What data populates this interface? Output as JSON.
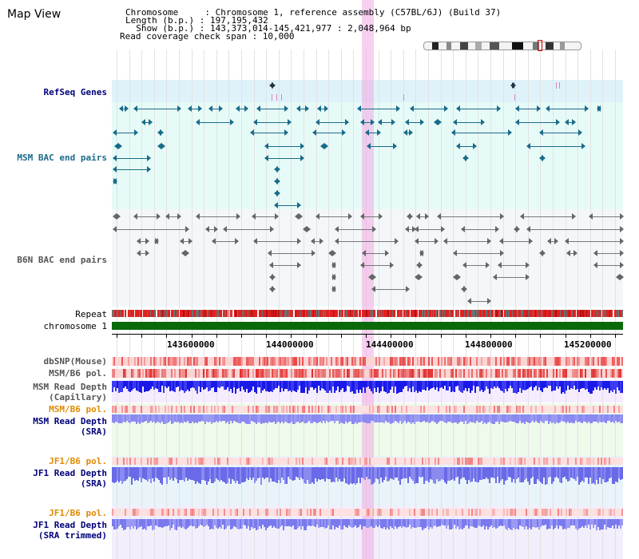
{
  "title": "Map View",
  "header": {
    "line1": "Chromosome     : Chromosome 1, reference assembly (C57BL/6J) (Build 37)",
    "line2": "Length (b.p.) : 197,195,432",
    "line3": "  Show (b.p.) : 143,373,014-145,421,977 : 2,048,964 bp",
    "line4": "Read coverage check span : 10,000"
  },
  "tracks": {
    "refseq": "RefSeq Genes",
    "msm_bac": "MSM BAC end pairs",
    "b6n_bac": "B6N BAC end pairs",
    "repeat": "Repeat",
    "chromosome": "chromosome 1",
    "dbsnp": "dbSNP(Mouse)",
    "msm_b6_pol_1": "MSM/B6 pol.",
    "msm_depth_cap_1": "MSM Read Depth",
    "msm_depth_cap_2": "(Capillary)",
    "msm_b6_pol_2": "MSM/B6 pol.",
    "msm_depth_sra_1": "MSM Read Depth",
    "msm_depth_sra_2": "(SRA)",
    "jf1_pol_1": "JF1/B6 pol.",
    "jf1_depth_1": "JF1 Read Depth",
    "jf1_depth_2": "(SRA)",
    "jf1_pol_2": "JF1/B6 pol.",
    "jf1_trim_1": "JF1 Read Depth",
    "jf1_trim_2": "(SRA trimmed)"
  },
  "axis": {
    "ticks": [
      "143600000",
      "144000000",
      "144400000",
      "144800000",
      "145200000"
    ]
  },
  "colors": {
    "refseq_bg": "#dff2fa",
    "refseq_feature": "#1a6b8a",
    "msm_bg": "#e6fbf8",
    "b6n_bg": "#f3f6f8",
    "highlight": "#f7d6f0",
    "chromosome": "#0a6a0a",
    "repeat_red": "#e02020",
    "pol_light": "#f9c0c0",
    "depth_blue": "#2020e0",
    "depth_light": "#8a8af0",
    "orange_label": "#e08a00",
    "navy_label": "#00007a"
  }
}
